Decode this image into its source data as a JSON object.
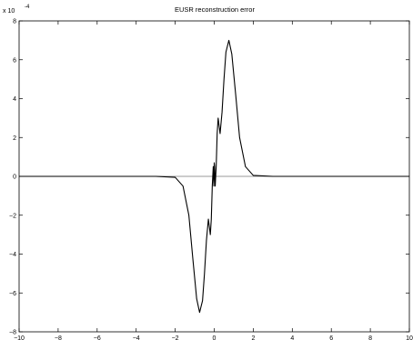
{
  "chart_data": {
    "type": "line",
    "title": "EUSR reconstruction error",
    "xlabel": "",
    "ylabel": "",
    "xlim": [
      -10,
      10
    ],
    "ylim": [
      -0.0008,
      0.0008
    ],
    "y_multiplier_label": "x 10",
    "y_multiplier_exponent": "-4",
    "x_ticks": [
      -10,
      -8,
      -6,
      -4,
      -2,
      0,
      2,
      4,
      6,
      8,
      10
    ],
    "x_tick_labels": [
      "−10",
      "−8",
      "−6",
      "−4",
      "−2",
      "0",
      "2",
      "4",
      "6",
      "8",
      "10"
    ],
    "y_ticks": [
      -8,
      -6,
      -4,
      -2,
      0,
      2,
      4,
      6,
      8
    ],
    "y_tick_labels": [
      "−8",
      "−6",
      "−4",
      "−2",
      "0",
      "2",
      "4",
      "6",
      "8"
    ],
    "grid": false,
    "series": [
      {
        "color": "#000000",
        "x": [
          -10,
          -3,
          -2,
          -1.6,
          -1.3,
          -1.1,
          -0.9,
          -0.75,
          -0.6,
          -0.5,
          -0.4,
          -0.3,
          -0.25,
          -0.2,
          -0.15,
          -0.1,
          -0.05,
          -0.02,
          0,
          0.02,
          0.05,
          0.1,
          0.15,
          0.2,
          0.25,
          0.3,
          0.4,
          0.5,
          0.6,
          0.75,
          0.9,
          1.1,
          1.3,
          1.6,
          2,
          3,
          10
        ],
        "y": [
          0,
          0,
          -5e-06,
          -5e-05,
          -0.0002,
          -0.00042,
          -0.00063,
          -0.0007,
          -0.00064,
          -0.0005,
          -0.00033,
          -0.00022,
          -0.00026,
          -0.0003,
          -0.00022,
          -5e-05,
          5e-05,
          -5e-05,
          7e-05,
          5e-05,
          -5e-05,
          5e-05,
          0.00022,
          0.0003,
          0.00026,
          0.00022,
          0.00033,
          0.0005,
          0.00064,
          0.0007,
          0.00063,
          0.00042,
          0.0002,
          5e-05,
          5e-06,
          0,
          0
        ]
      },
      {
        "color": "#9a9a9a",
        "x": [
          -10,
          10
        ],
        "y": [
          0,
          0
        ]
      }
    ]
  }
}
